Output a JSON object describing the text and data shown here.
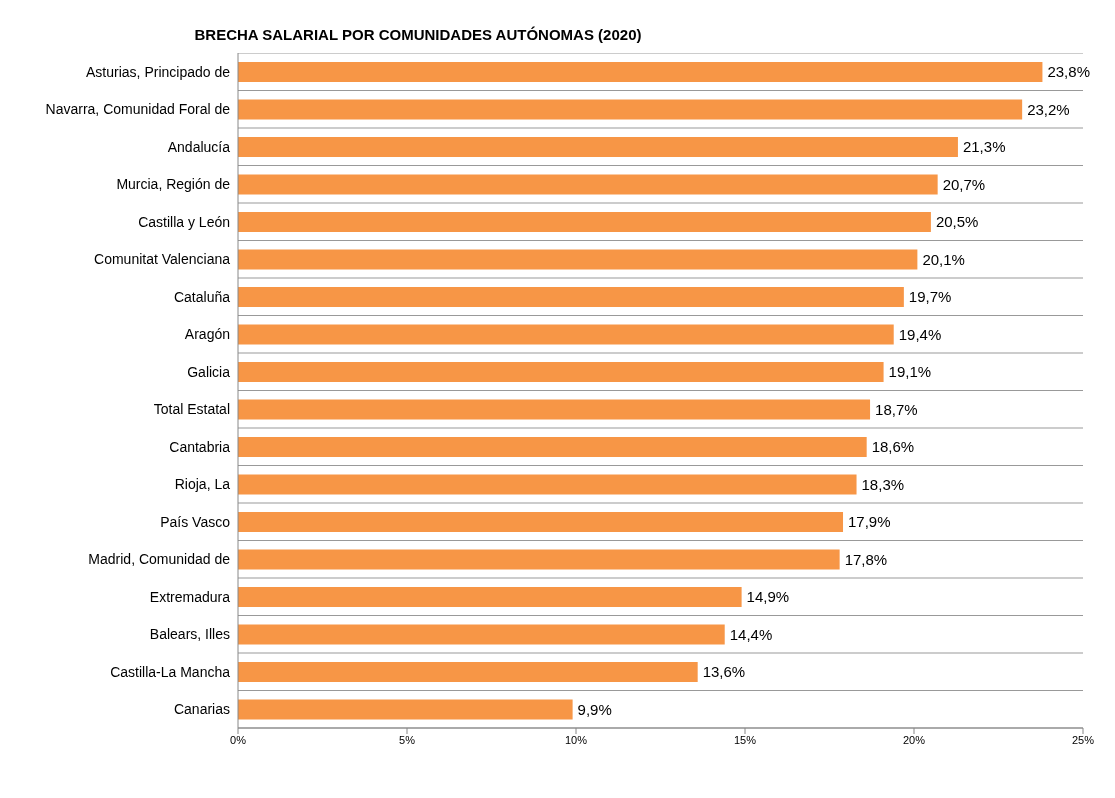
{
  "chart_data": {
    "type": "bar",
    "orientation": "horizontal",
    "title": "BRECHA SALARIAL POR COMUNIDADES AUTÓNOMAS (2020)",
    "categories": [
      "Asturias, Principado de",
      "Navarra, Comunidad Foral de",
      "Andalucía",
      "Murcia, Región de",
      "Castilla y León",
      "Comunitat Valenciana",
      "Cataluña",
      "Aragón",
      "Galicia",
      "Total Estatal",
      "Cantabria",
      "Rioja, La",
      "País Vasco",
      "Madrid, Comunidad de",
      "Extremadura",
      "Balears, Illes",
      "Castilla-La Mancha",
      "Canarias"
    ],
    "values": [
      23.8,
      23.2,
      21.3,
      20.7,
      20.5,
      20.1,
      19.7,
      19.4,
      19.1,
      18.7,
      18.6,
      18.3,
      17.9,
      17.8,
      14.9,
      14.4,
      13.6,
      9.9
    ],
    "value_labels": [
      "23,8%",
      "23,2%",
      "21,3%",
      "20,7%",
      "20,5%",
      "20,1%",
      "19,7%",
      "19,4%",
      "19,1%",
      "18,7%",
      "18,6%",
      "18,3%",
      "17,9%",
      "17,8%",
      "14,9%",
      "14,4%",
      "13,6%",
      "9,9%"
    ],
    "color": "#f79646",
    "xlim": [
      0,
      25
    ],
    "xticks": [
      {
        "value": 0,
        "label": "0%"
      },
      {
        "value": 5,
        "label": "5%"
      },
      {
        "value": 10,
        "label": "10%"
      },
      {
        "value": 15,
        "label": "15%"
      },
      {
        "value": 20,
        "label": "20%"
      },
      {
        "value": 25,
        "label": "25%"
      }
    ],
    "grid": "y"
  }
}
